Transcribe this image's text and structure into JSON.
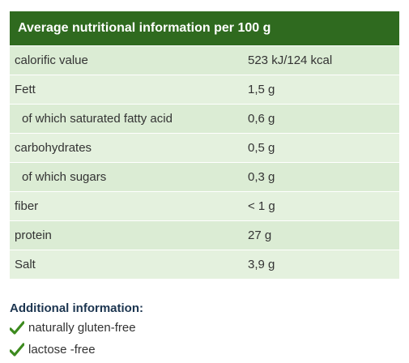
{
  "table": {
    "title": "Average nutritional information per 100 g",
    "rows": [
      [
        "calorific value",
        "523 kJ/124 kcal"
      ],
      [
        "Fett",
        "1,5 g"
      ],
      [
        "of which saturated fatty acid",
        "0,6 g"
      ],
      [
        "carbohydrates",
        "0,5 g"
      ],
      [
        "of which sugars",
        "0,3 g"
      ],
      [
        "fiber",
        "< 1 g"
      ],
      [
        "protein",
        "27 g"
      ],
      [
        "Salt",
        "3,9 g"
      ]
    ]
  },
  "additional": {
    "title": "Additional information:",
    "items": [
      "naturally gluten-free",
      "lactose -free"
    ]
  }
}
